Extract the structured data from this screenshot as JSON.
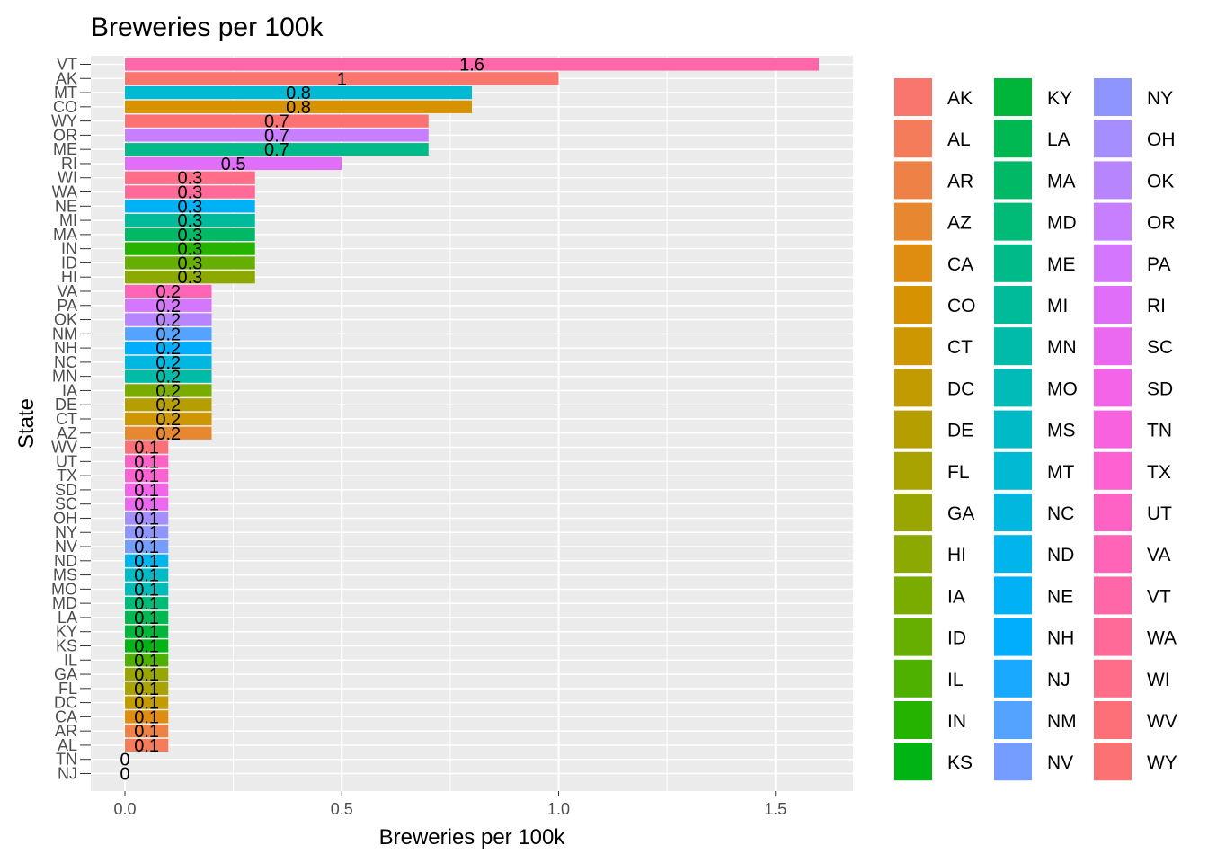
{
  "chart_data": {
    "type": "bar",
    "orientation": "horizontal",
    "title": "Breweries per 100k",
    "xlabel": "Breweries per 100k",
    "ylabel": "State",
    "xlim": [
      0,
      1.6
    ],
    "x_ticks": [
      "0.0",
      "0.5",
      "1.0",
      "1.5"
    ],
    "x_tick_values": [
      0,
      0.5,
      1.0,
      1.5
    ],
    "grid": true,
    "legend_position": "right",
    "colors": {
      "panel_background": "#ebebeb",
      "grid_line": "#ffffff",
      "tick_text": "#4d4d4d"
    },
    "categories": [
      "VT",
      "AK",
      "MT",
      "CO",
      "WY",
      "OR",
      "ME",
      "RI",
      "WI",
      "WA",
      "NE",
      "MI",
      "MA",
      "IN",
      "ID",
      "HI",
      "VA",
      "PA",
      "OK",
      "NM",
      "NH",
      "NC",
      "MN",
      "IA",
      "DE",
      "CT",
      "AZ",
      "WV",
      "UT",
      "TX",
      "SD",
      "SC",
      "OH",
      "NY",
      "NV",
      "ND",
      "MS",
      "MO",
      "MD",
      "LA",
      "KY",
      "KS",
      "IL",
      "GA",
      "FL",
      "DC",
      "CA",
      "AR",
      "AL",
      "TN",
      "NJ"
    ],
    "values": [
      1.6,
      1.0,
      0.8,
      0.8,
      0.7,
      0.7,
      0.7,
      0.5,
      0.3,
      0.3,
      0.3,
      0.3,
      0.3,
      0.3,
      0.3,
      0.3,
      0.2,
      0.2,
      0.2,
      0.2,
      0.2,
      0.2,
      0.2,
      0.2,
      0.2,
      0.2,
      0.2,
      0.1,
      0.1,
      0.1,
      0.1,
      0.1,
      0.1,
      0.1,
      0.1,
      0.1,
      0.1,
      0.1,
      0.1,
      0.1,
      0.1,
      0.1,
      0.1,
      0.1,
      0.1,
      0.1,
      0.1,
      0.1,
      0.1,
      0,
      0
    ],
    "labels": [
      "1.6",
      "1",
      "0.8",
      "0.8",
      "0.7",
      "0.7",
      "0.7",
      "0.5",
      "0.3",
      "0.3",
      "0.3",
      "0.3",
      "0.3",
      "0.3",
      "0.3",
      "0.3",
      "0.2",
      "0.2",
      "0.2",
      "0.2",
      "0.2",
      "0.2",
      "0.2",
      "0.2",
      "0.2",
      "0.2",
      "0.2",
      "0.1",
      "0.1",
      "0.1",
      "0.1",
      "0.1",
      "0.1",
      "0.1",
      "0.1",
      "0.1",
      "0.1",
      "0.1",
      "0.1",
      "0.1",
      "0.1",
      "0.1",
      "0.1",
      "0.1",
      "0.1",
      "0.1",
      "0.1",
      "0.1",
      "0.1",
      "0",
      "0"
    ],
    "legend": {
      "entries": [
        "AK",
        "AL",
        "AR",
        "AZ",
        "CA",
        "CO",
        "CT",
        "DC",
        "DE",
        "FL",
        "GA",
        "HI",
        "IA",
        "ID",
        "IL",
        "IN",
        "KS",
        "KY",
        "LA",
        "MA",
        "MD",
        "ME",
        "MI",
        "MN",
        "MO",
        "MS",
        "MT",
        "NC",
        "ND",
        "NE",
        "NH",
        "NJ",
        "NM",
        "NV",
        "NY",
        "OH",
        "OK",
        "OR",
        "PA",
        "RI",
        "SC",
        "SD",
        "TN",
        "TX",
        "UT",
        "VA",
        "VT",
        "WA",
        "WI",
        "WV",
        "WY"
      ],
      "colors": [
        "#F8766D",
        "#F47C5A",
        "#EE8246",
        "#E78830",
        "#DF8D10",
        "#D69200",
        "#CC9700",
        "#C19B00",
        "#B59F00",
        "#A8A300",
        "#9AA600",
        "#8BA900",
        "#7AAC00",
        "#66AE00",
        "#4EB100",
        "#26B300",
        "#00B513",
        "#00B63A",
        "#00B852",
        "#00B966",
        "#00BA78",
        "#00BA89",
        "#00BB99",
        "#00BBA8",
        "#00BBB7",
        "#00BAC5",
        "#00B9D2",
        "#00B7DF",
        "#00B5EB",
        "#00B2F5",
        "#00AEFE",
        "#19A9FF",
        "#53A3FF",
        "#759CFF",
        "#8F95FF",
        "#A58EFF",
        "#B786FF",
        "#C77EFF",
        "#D576FE",
        "#E16EF8",
        "#EB68F0",
        "#F364E8",
        "#F962DE",
        "#FE61D2",
        "#FF62C5",
        "#FF64B7",
        "#FF67A8",
        "#FF6A98",
        "#FF6D88",
        "#FD7077",
        "#FC7171"
      ]
    }
  }
}
